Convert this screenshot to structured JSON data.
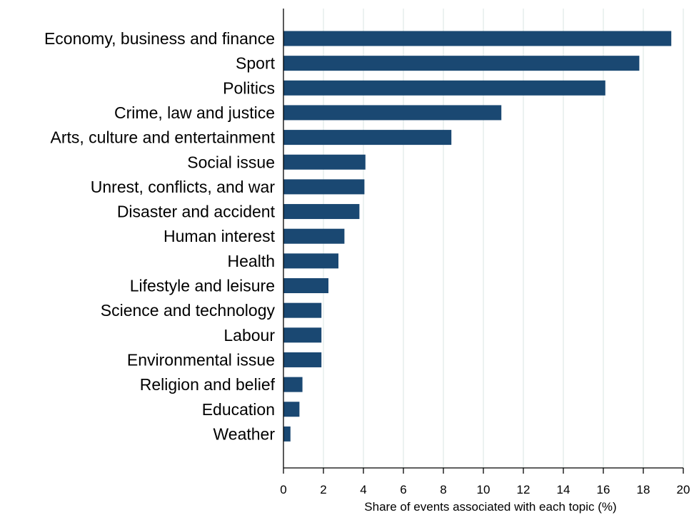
{
  "chart_data": {
    "type": "bar",
    "orientation": "horizontal",
    "categories": [
      "Economy, business and finance",
      "Sport",
      "Politics",
      "Crime, law and justice",
      "Arts, culture and entertainment",
      "Social issue",
      "Unrest, conflicts, and war",
      "Disaster and accident",
      "Human interest",
      "Health",
      "Lifestyle and leisure",
      "Science and technology",
      "Labour",
      "Environmental issue",
      "Religion and belief",
      "Education",
      "Weather"
    ],
    "values": [
      19.4,
      17.8,
      16.1,
      10.9,
      8.4,
      4.1,
      4.05,
      3.8,
      3.05,
      2.75,
      2.25,
      1.9,
      1.9,
      1.9,
      0.95,
      0.8,
      0.35
    ],
    "title": "",
    "xlabel": "Share of events associated with each topic (%)",
    "ylabel": "",
    "xlim": [
      0,
      20
    ],
    "xticks": [
      0,
      2,
      4,
      6,
      8,
      10,
      12,
      14,
      16,
      18,
      20
    ],
    "grid": "vertical",
    "bar_color": "#1a4872",
    "grid_color": "#e2ece9"
  }
}
